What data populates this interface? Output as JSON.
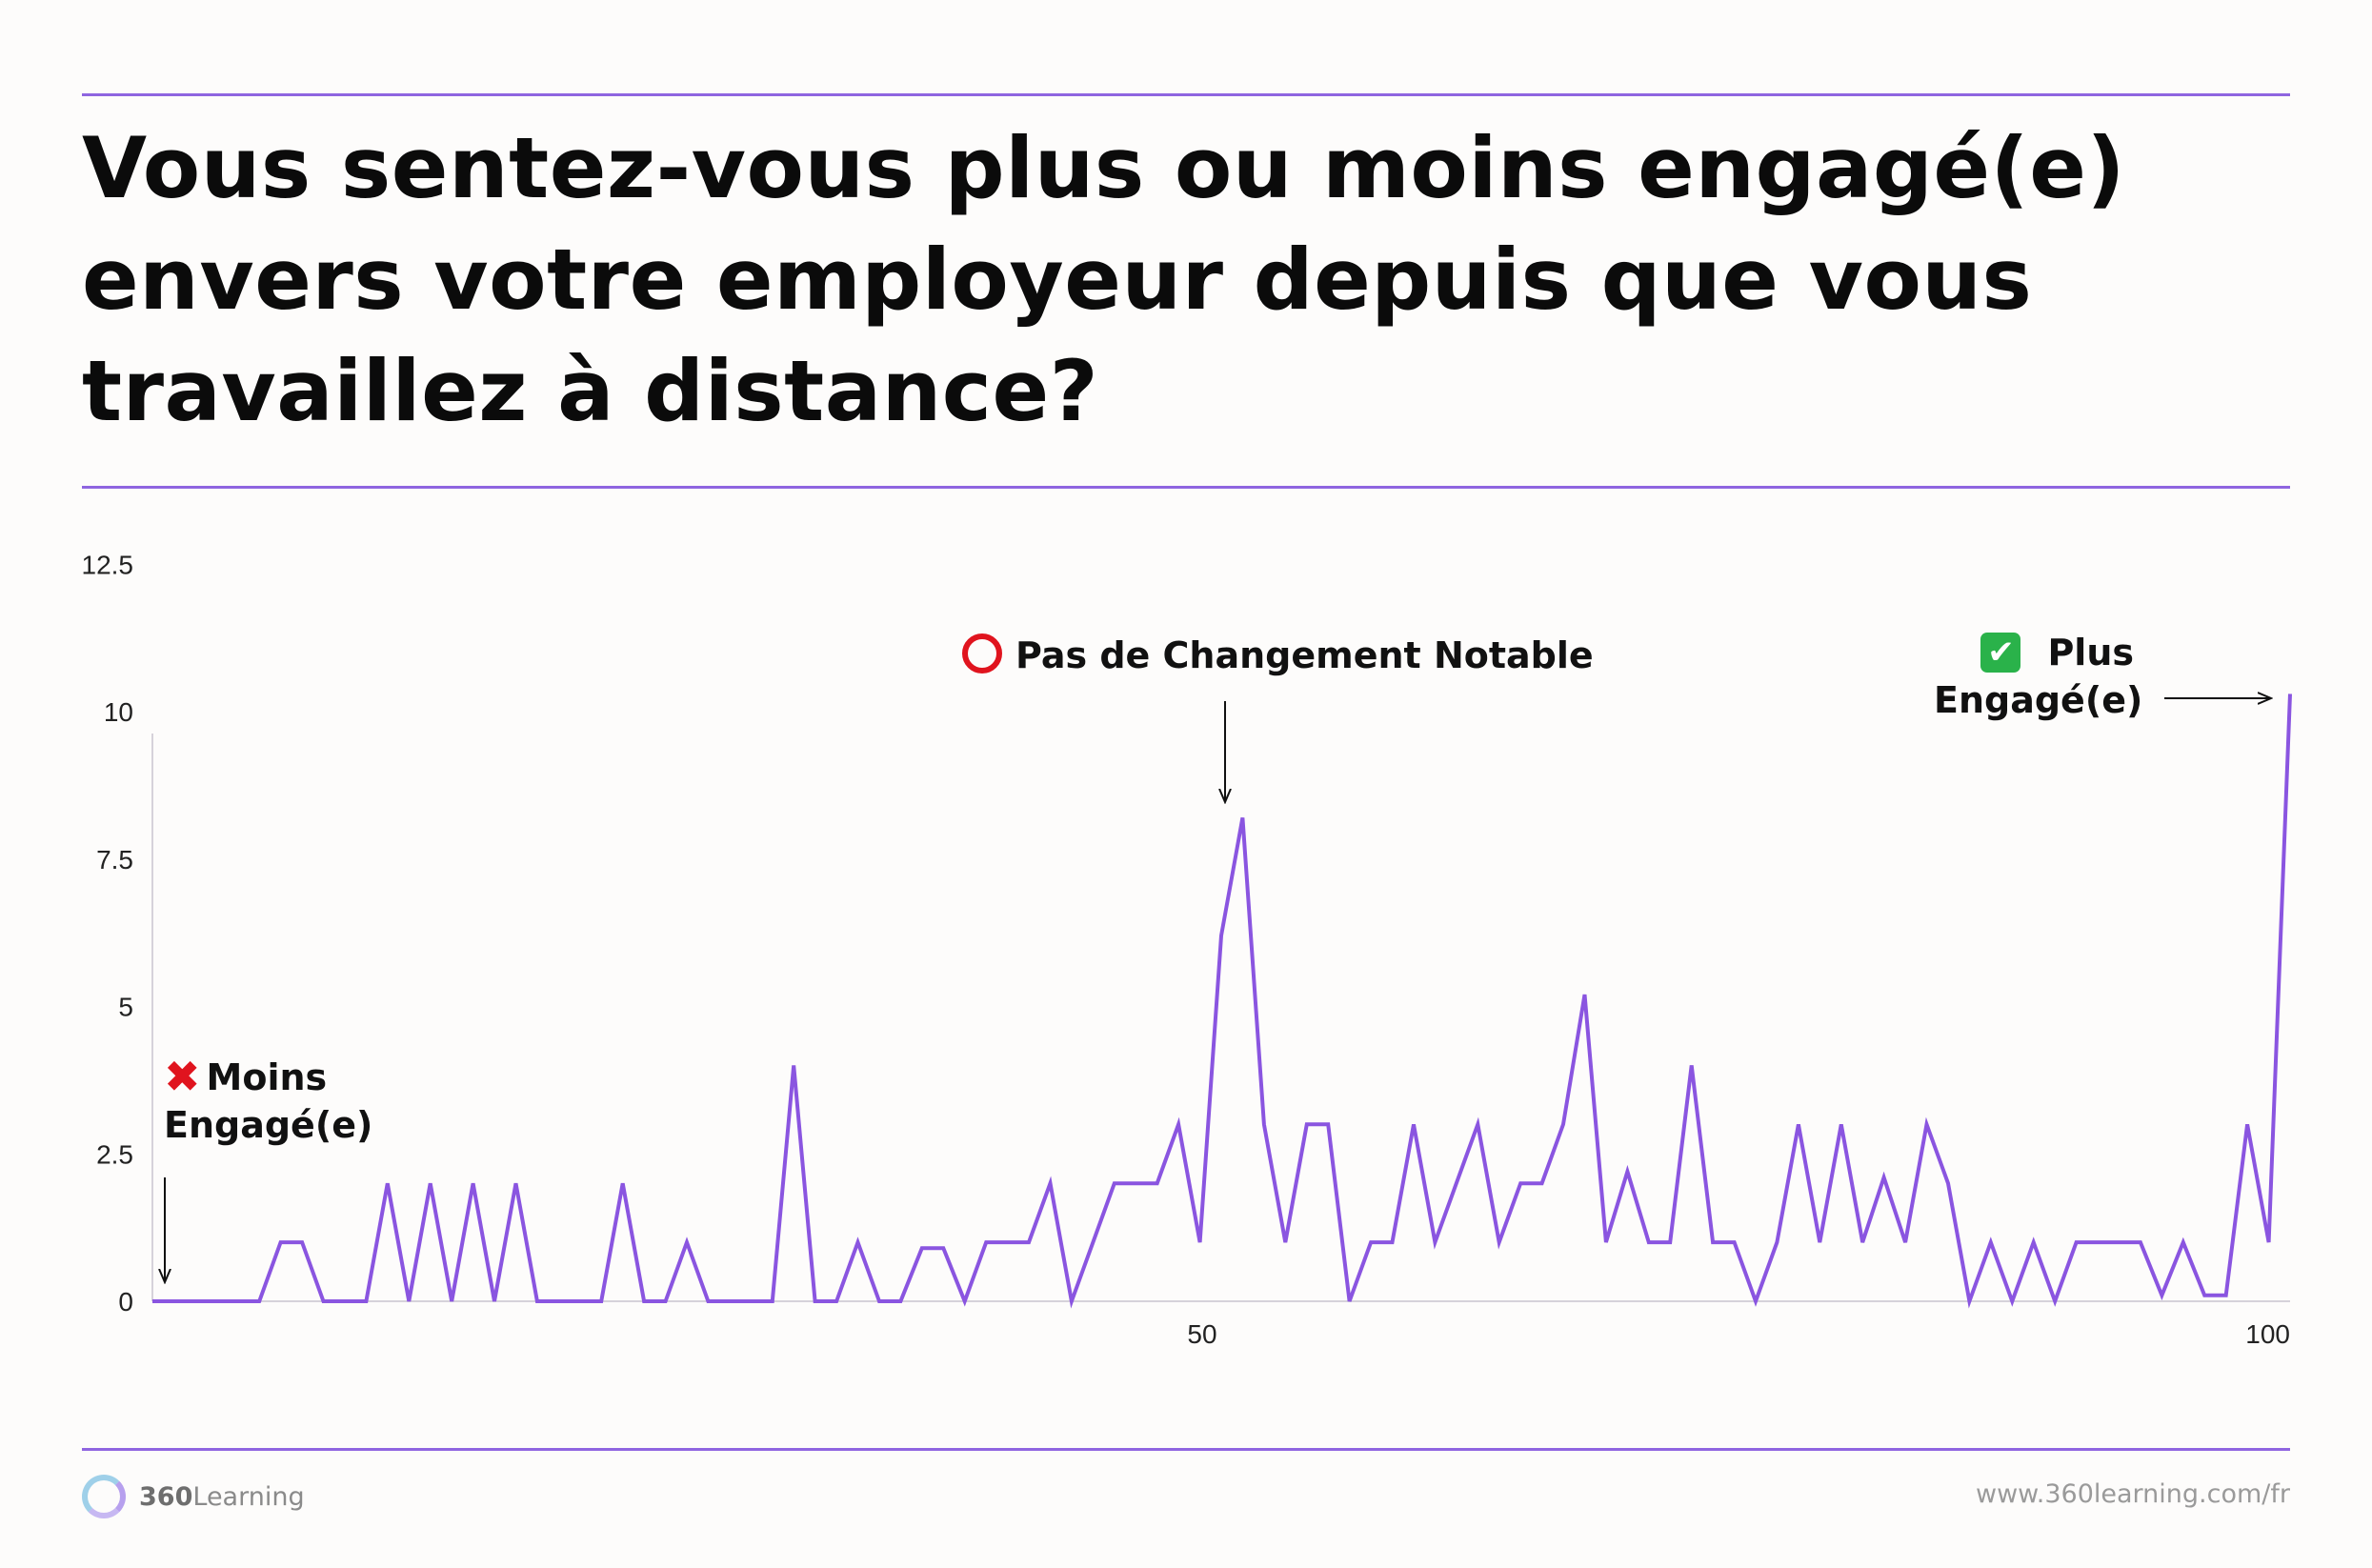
{
  "header": {
    "title": "Vous sentez-vous plus ou moins engagé(e) envers votre employeur depuis que vous travaillez à distance?"
  },
  "annotations": {
    "moins": {
      "line1": "Moins",
      "line2": "Engagé(e)",
      "icon": "cross-mark-icon"
    },
    "pas": {
      "text": "Pas de Changement Notable",
      "icon": "hollow-red-circle-icon"
    },
    "plus": {
      "line1": "Plus",
      "line2": "Engagé(e)",
      "icon": "check-mark-button-icon"
    }
  },
  "footer": {
    "logo_bold": "360",
    "logo_rest": "Learning",
    "url": "www.360learning.com/fr"
  },
  "colors": {
    "accent": "#8f65e0",
    "line": "#8a55e0",
    "cross": "#e0141e",
    "check": "#2ab24a"
  },
  "chart_data": {
    "type": "line",
    "title": "",
    "xlabel": "",
    "ylabel": "",
    "xlim": [
      0,
      100
    ],
    "ylim": [
      0,
      12.5
    ],
    "x_ticks": [
      "50",
      "100"
    ],
    "x_tick_values": [
      50,
      100
    ],
    "y_ticks": [
      "0",
      "2.5",
      "5",
      "7.5",
      "10",
      "12.5"
    ],
    "y_tick_values": [
      0,
      2.5,
      5,
      7.5,
      10,
      12.5
    ],
    "grid": false,
    "series": [
      {
        "values": [
          0,
          0,
          0,
          0,
          0,
          0,
          1,
          1,
          0,
          0,
          0,
          2,
          0,
          2,
          0,
          2,
          0,
          2,
          0,
          0,
          0,
          0,
          2,
          0,
          0,
          1,
          0,
          0,
          0,
          0,
          4,
          0,
          0,
          1,
          0,
          0,
          0.9,
          0.9,
          0,
          1,
          1,
          1,
          2,
          0,
          1,
          2,
          2,
          2,
          3,
          1,
          6.2,
          8.2,
          3,
          1,
          3,
          3,
          0,
          1,
          1,
          3,
          1,
          2,
          3,
          1,
          2,
          2,
          3,
          5.2,
          1,
          2.2,
          1,
          1,
          4,
          1,
          1,
          0,
          1,
          3,
          1,
          3,
          1,
          2.1,
          1,
          3,
          2,
          0,
          1,
          0,
          1,
          0,
          1,
          1,
          1,
          1,
          0.1,
          1,
          0.1,
          0.1,
          3,
          1,
          10.3
        ]
      }
    ]
  }
}
